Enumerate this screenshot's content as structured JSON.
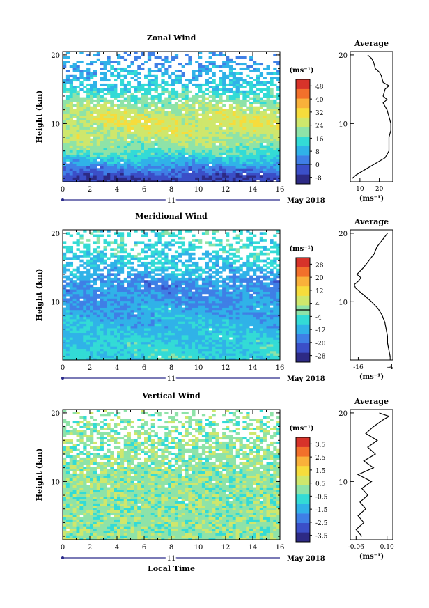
{
  "colors": {
    "cmap": [
      "#2d2a85",
      "#3b4fc8",
      "#3f7fe6",
      "#30b2e8",
      "#33dbd6",
      "#8ee3a8",
      "#cfe76c",
      "#f6dc3c",
      "#f9b13a",
      "#f2702b",
      "#d7332a"
    ],
    "line": "#000000",
    "tick_mark": "#2a2a8a"
  },
  "common": {
    "y_axis_label": "Height (km)",
    "x_ticks": [
      "0",
      "2",
      "4",
      "6",
      "8",
      "10",
      "12",
      "14",
      "16"
    ],
    "y_ticks": [
      "10",
      "20"
    ],
    "day_label": "11",
    "month_label": "May 2018",
    "unit_label": "(ms⁻¹)",
    "x_axis_label": "Local Time",
    "avg_title": "Average"
  },
  "chart_data": [
    {
      "type": "heatmap",
      "title": "Zonal Wind",
      "ylabel": "Height (km)",
      "xlim": [
        0,
        16
      ],
      "ylim": [
        1.5,
        20.5
      ],
      "xlabel_ticks": [
        0,
        2,
        4,
        6,
        8,
        10,
        12,
        14,
        16
      ],
      "colorbar": {
        "label": "(ms⁻¹)",
        "ticks": [
          "48",
          "40",
          "32",
          "24",
          "16",
          "8",
          "0",
          "-8"
        ],
        "min": -12,
        "max": 52,
        "zero_line": 0
      },
      "profile_by_height": [
        {
          "h": 2,
          "v": -6
        },
        {
          "h": 3,
          "v": 0
        },
        {
          "h": 4,
          "v": 6
        },
        {
          "h": 5,
          "v": 12
        },
        {
          "h": 6,
          "v": 17
        },
        {
          "h": 7,
          "v": 21
        },
        {
          "h": 8,
          "v": 24
        },
        {
          "h": 9,
          "v": 26
        },
        {
          "h": 10,
          "v": 27
        },
        {
          "h": 11,
          "v": 26
        },
        {
          "h": 12,
          "v": 24
        },
        {
          "h": 13,
          "v": 21
        },
        {
          "h": 14,
          "v": 17
        },
        {
          "h": 15,
          "v": 14
        },
        {
          "h": 16,
          "v": 11
        },
        {
          "h": 17,
          "v": 9
        },
        {
          "h": 18,
          "v": 7
        },
        {
          "h": 19,
          "v": 5
        }
      ],
      "average": {
        "title": "Average",
        "xticks": [
          "10",
          "20"
        ],
        "xlim": [
          5,
          27
        ],
        "xlabel": "(ms⁻¹)",
        "points": [
          {
            "h": 2.0,
            "v": 6
          },
          {
            "h": 2.5,
            "v": 8
          },
          {
            "h": 3.0,
            "v": 11
          },
          {
            "h": 3.5,
            "v": 14
          },
          {
            "h": 4.0,
            "v": 17
          },
          {
            "h": 4.5,
            "v": 20
          },
          {
            "h": 5.0,
            "v": 23
          },
          {
            "h": 5.5,
            "v": 24
          },
          {
            "h": 6.0,
            "v": 25
          },
          {
            "h": 7.0,
            "v": 25
          },
          {
            "h": 8.0,
            "v": 25
          },
          {
            "h": 9.0,
            "v": 26
          },
          {
            "h": 10.0,
            "v": 26
          },
          {
            "h": 11.0,
            "v": 25
          },
          {
            "h": 12.0,
            "v": 24
          },
          {
            "h": 13.0,
            "v": 22
          },
          {
            "h": 13.5,
            "v": 24
          },
          {
            "h": 14.0,
            "v": 22
          },
          {
            "h": 15.0,
            "v": 23
          },
          {
            "h": 15.5,
            "v": 25
          },
          {
            "h": 16.0,
            "v": 22
          },
          {
            "h": 17.0,
            "v": 21
          },
          {
            "h": 17.5,
            "v": 20
          },
          {
            "h": 18.0,
            "v": 18
          },
          {
            "h": 19.0,
            "v": 17
          },
          {
            "h": 19.5,
            "v": 16
          },
          {
            "h": 20.0,
            "v": 14
          }
        ]
      }
    },
    {
      "type": "heatmap",
      "title": "Meridional Wind",
      "ylabel": "Height (km)",
      "xlim": [
        0,
        16
      ],
      "ylim": [
        1.5,
        20.5
      ],
      "xlabel_ticks": [
        0,
        2,
        4,
        6,
        8,
        10,
        12,
        14,
        16
      ],
      "colorbar": {
        "label": "(ms⁻¹)",
        "ticks": [
          "28",
          "20",
          "12",
          "4",
          "-4",
          "-12",
          "-20",
          "-28"
        ],
        "min": -32,
        "max": 32,
        "zero_line": 0
      },
      "profile_by_height": [
        {
          "h": 2,
          "v": -6
        },
        {
          "h": 3,
          "v": -7
        },
        {
          "h": 4,
          "v": -8
        },
        {
          "h": 5,
          "v": -9
        },
        {
          "h": 6,
          "v": -10
        },
        {
          "h": 7,
          "v": -11
        },
        {
          "h": 8,
          "v": -12
        },
        {
          "h": 9,
          "v": -13
        },
        {
          "h": 10,
          "v": -14
        },
        {
          "h": 11,
          "v": -15
        },
        {
          "h": 12,
          "v": -16
        },
        {
          "h": 13,
          "v": -15
        },
        {
          "h": 14,
          "v": -12
        },
        {
          "h": 15,
          "v": -10
        },
        {
          "h": 16,
          "v": -8
        },
        {
          "h": 17,
          "v": -7
        },
        {
          "h": 18,
          "v": -6
        },
        {
          "h": 19,
          "v": -5
        }
      ],
      "average": {
        "title": "Average",
        "xticks": [
          "-16",
          "-4"
        ],
        "xlim": [
          -19,
          -3
        ],
        "xlabel": "(ms⁻¹)",
        "points": [
          {
            "h": 2.0,
            "v": -4
          },
          {
            "h": 3.0,
            "v": -4.5
          },
          {
            "h": 4.0,
            "v": -5
          },
          {
            "h": 5.0,
            "v": -5
          },
          {
            "h": 6.0,
            "v": -5.5
          },
          {
            "h": 7.0,
            "v": -6
          },
          {
            "h": 8.0,
            "v": -7
          },
          {
            "h": 9.0,
            "v": -8.5
          },
          {
            "h": 10.0,
            "v": -11
          },
          {
            "h": 11.0,
            "v": -14
          },
          {
            "h": 11.5,
            "v": -15.5
          },
          {
            "h": 12.0,
            "v": -17
          },
          {
            "h": 12.5,
            "v": -17.5
          },
          {
            "h": 13.0,
            "v": -16
          },
          {
            "h": 13.5,
            "v": -15
          },
          {
            "h": 14.0,
            "v": -16.5
          },
          {
            "h": 15.0,
            "v": -14
          },
          {
            "h": 16.0,
            "v": -12
          },
          {
            "h": 17.0,
            "v": -10
          },
          {
            "h": 18.0,
            "v": -9
          },
          {
            "h": 19.0,
            "v": -7
          },
          {
            "h": 20.0,
            "v": -5
          }
        ]
      }
    },
    {
      "type": "heatmap",
      "title": "Vertical Wind",
      "ylabel": "Height (km)",
      "xlabel": "Local Time",
      "xlim": [
        0,
        16
      ],
      "ylim": [
        1.5,
        20.5
      ],
      "xlabel_ticks": [
        0,
        2,
        4,
        6,
        8,
        10,
        12,
        14,
        16
      ],
      "colorbar": {
        "label": "(ms⁻¹)",
        "ticks": [
          "3.5",
          "2.5",
          "1.5",
          "0.5",
          "-0.5",
          "-1.5",
          "-2.5",
          "-3.5"
        ],
        "min": -4,
        "max": 4,
        "zero_line": null
      },
      "profile_by_height": [
        {
          "h": 2,
          "v": 0
        },
        {
          "h": 6,
          "v": 0
        },
        {
          "h": 10,
          "v": 0
        },
        {
          "h": 14,
          "v": 0
        },
        {
          "h": 19,
          "v": 0
        }
      ],
      "average": {
        "title": "Average",
        "xticks": [
          "-0.06",
          "0.10"
        ],
        "xlim": [
          -0.09,
          0.13
        ],
        "xlabel": "(ms⁻¹)",
        "points": [
          {
            "h": 2.0,
            "v": -0.03
          },
          {
            "h": 3.0,
            "v": -0.06
          },
          {
            "h": 4.0,
            "v": -0.02
          },
          {
            "h": 5.0,
            "v": -0.05
          },
          {
            "h": 6.0,
            "v": -0.01
          },
          {
            "h": 7.0,
            "v": -0.04
          },
          {
            "h": 8.0,
            "v": 0.0
          },
          {
            "h": 9.0,
            "v": -0.03
          },
          {
            "h": 10.0,
            "v": 0.02
          },
          {
            "h": 11.0,
            "v": -0.05
          },
          {
            "h": 12.0,
            "v": 0.03
          },
          {
            "h": 13.0,
            "v": -0.02
          },
          {
            "h": 14.0,
            "v": 0.04
          },
          {
            "h": 15.0,
            "v": 0.0
          },
          {
            "h": 16.0,
            "v": 0.05
          },
          {
            "h": 17.0,
            "v": -0.01
          },
          {
            "h": 18.0,
            "v": 0.03
          },
          {
            "h": 19.0,
            "v": 0.08
          },
          {
            "h": 19.5,
            "v": 0.11
          },
          {
            "h": 20.0,
            "v": 0.06
          }
        ]
      }
    }
  ]
}
